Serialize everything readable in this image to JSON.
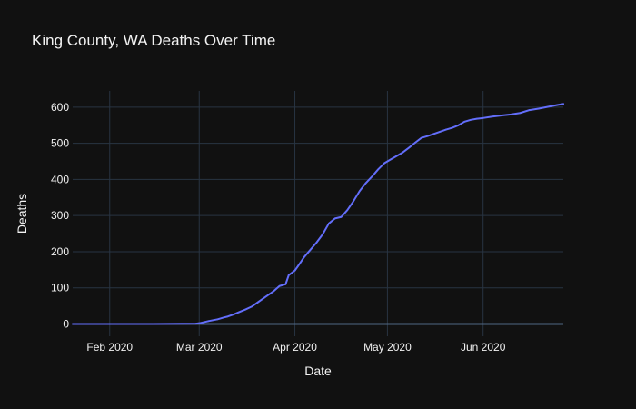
{
  "chart_data": {
    "type": "line",
    "title": "King County, WA Deaths Over Time",
    "xlabel": "Date",
    "ylabel": "Deaths",
    "xlim": [
      "2020-01-20",
      "2020-06-27"
    ],
    "ylim": [
      -34,
      645
    ],
    "grid": true,
    "legend": "none",
    "x_ticks": [
      {
        "value": "2020-02-01",
        "label": "Feb 2020"
      },
      {
        "value": "2020-03-01",
        "label": "Mar 2020"
      },
      {
        "value": "2020-04-01",
        "label": "Apr 2020"
      },
      {
        "value": "2020-05-01",
        "label": "May 2020"
      },
      {
        "value": "2020-06-01",
        "label": "Jun 2020"
      }
    ],
    "y_ticks": [
      0,
      100,
      200,
      300,
      400,
      500,
      600
    ],
    "series": [
      {
        "color": "#636efa",
        "x": [
          "2020-01-20",
          "2020-02-01",
          "2020-02-15",
          "2020-02-29",
          "2020-03-01",
          "2020-03-04",
          "2020-03-07",
          "2020-03-09",
          "2020-03-10",
          "2020-03-12",
          "2020-03-14",
          "2020-03-16",
          "2020-03-18",
          "2020-03-20",
          "2020-03-22",
          "2020-03-24",
          "2020-03-25",
          "2020-03-27",
          "2020-03-29",
          "2020-03-30",
          "2020-04-01",
          "2020-04-02",
          "2020-04-04",
          "2020-04-06",
          "2020-04-08",
          "2020-04-10",
          "2020-04-12",
          "2020-04-14",
          "2020-04-16",
          "2020-04-18",
          "2020-04-20",
          "2020-04-22",
          "2020-04-24",
          "2020-04-26",
          "2020-04-28",
          "2020-04-30",
          "2020-05-02",
          "2020-05-04",
          "2020-05-06",
          "2020-05-08",
          "2020-05-10",
          "2020-05-12",
          "2020-05-14",
          "2020-05-16",
          "2020-05-18",
          "2020-05-20",
          "2020-05-22",
          "2020-05-24",
          "2020-05-26",
          "2020-05-28",
          "2020-05-30",
          "2020-06-01",
          "2020-06-04",
          "2020-06-07",
          "2020-06-10",
          "2020-06-13",
          "2020-06-16",
          "2020-06-19",
          "2020-06-22",
          "2020-06-25",
          "2020-06-27"
        ],
        "y": [
          0,
          0,
          0,
          1,
          2,
          8,
          13,
          18,
          20,
          26,
          33,
          40,
          48,
          60,
          72,
          84,
          90,
          105,
          110,
          135,
          148,
          160,
          185,
          205,
          225,
          248,
          278,
          292,
          296,
          315,
          340,
          368,
          390,
          408,
          428,
          445,
          455,
          465,
          475,
          488,
          502,
          515,
          520,
          526,
          532,
          538,
          543,
          550,
          560,
          565,
          568,
          570,
          574,
          577,
          580,
          584,
          592,
          596,
          601,
          606,
          609
        ]
      }
    ]
  }
}
